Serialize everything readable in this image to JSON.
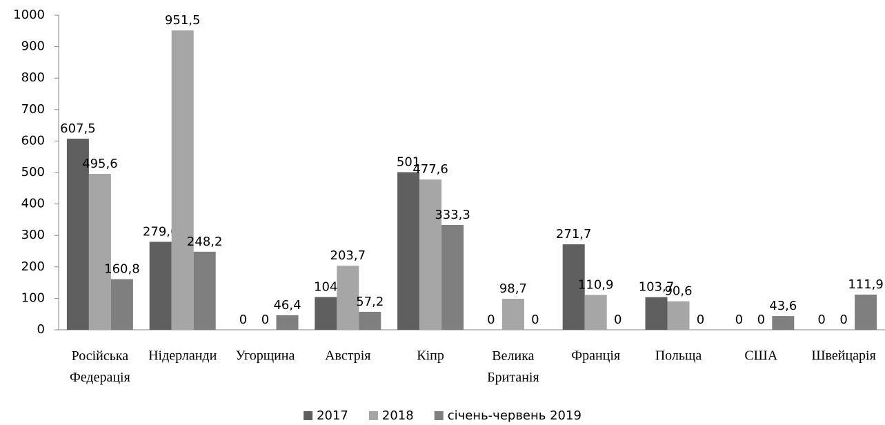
{
  "chart_data": {
    "type": "bar",
    "categories": [
      "Російська Федерація",
      "Нідерланди",
      "Угорщина",
      "Австрія",
      "Кіпр",
      "Велика Британія",
      "Франція",
      "Польща",
      "США",
      "Швейцарія"
    ],
    "series": [
      {
        "name": "2017",
        "color": "#5f5f5f",
        "values": [
          607.5,
          279.6,
          0,
          104,
          501,
          0,
          271.7,
          103.7,
          0,
          0
        ],
        "value_labels": [
          "607,5",
          "279,6",
          "0",
          "104",
          "501",
          "0",
          "271,7",
          "103,7",
          "0",
          "0"
        ]
      },
      {
        "name": "2018",
        "color": "#a6a6a6",
        "values": [
          495.6,
          951.5,
          0,
          203.7,
          477.6,
          98.7,
          110.9,
          90.6,
          0,
          0
        ],
        "value_labels": [
          "495,6",
          "951,5",
          "0",
          "203,7",
          "477,6",
          "98,7",
          "110,9",
          "90,6",
          "0",
          "0"
        ]
      },
      {
        "name": "січень-червень 2019",
        "color": "#7f7f7f",
        "values": [
          160.8,
          248.2,
          46.4,
          57.2,
          333.3,
          0,
          0,
          0,
          43.6,
          111.9
        ],
        "value_labels": [
          "160,8",
          "248,2",
          "46,4",
          "57,2",
          "333,3",
          "0",
          "0",
          "0",
          "43,6",
          "111,9"
        ]
      }
    ],
    "ylim": [
      0,
      1000
    ],
    "yticks": [
      0,
      100,
      200,
      300,
      400,
      500,
      600,
      700,
      800,
      900,
      1000
    ],
    "grid": false,
    "legend": "bottom"
  }
}
